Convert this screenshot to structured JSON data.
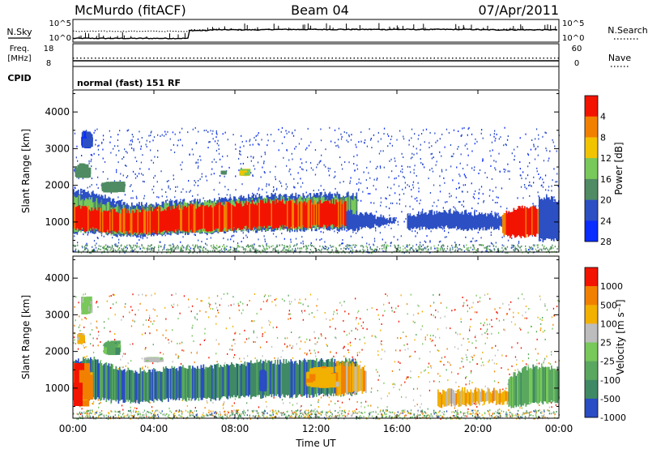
{
  "chart_data": {
    "type": "heatmap",
    "header": {
      "station": "McMurdo (fitACF)",
      "beam": "Beam 04",
      "date": "07/Apr/2011"
    },
    "summary_panels": {
      "nsky_label": "N.Sky",
      "nsky_ticks": [
        "10^5",
        "10^0"
      ],
      "nsearch_label": "N.Search",
      "nsearch_ticks": [
        "10^5",
        "10^0"
      ],
      "freq_label": "Freq.",
      "freq_unit": "[MHz]",
      "freq_ticks": [
        "18",
        "8"
      ],
      "nave_label": "Nave",
      "nave_ticks": [
        "60",
        "0"
      ],
      "cpid_label": "CPID",
      "mode_text": "normal (fast) 151 RF",
      "nsky_log_level": [
        0.6,
        0.6,
        0.6,
        0.6,
        0.6,
        0.6,
        2.8,
        3.0,
        3.0,
        3.0,
        3.1,
        3.1,
        3.1,
        3.1,
        3.1,
        3.1,
        3.1,
        3.1,
        3.1,
        3.1,
        3.1,
        3.0,
        3.0,
        3.0,
        3.0
      ],
      "nsearch_log_level": [
        2.6,
        2.6,
        2.6,
        2.6,
        2.6,
        2.6,
        3.0,
        3.1,
        3.1,
        3.1,
        3.1,
        3.1,
        3.1,
        3.1,
        3.1,
        3.1,
        3.1,
        3.1,
        3.1,
        3.1,
        3.1,
        3.1,
        3.1,
        3.1,
        3.1
      ],
      "freq_mhz": 10.5,
      "nave": 22
    },
    "x_axis": {
      "label": "Time UT",
      "ticks": [
        "00:00",
        "04:00",
        "08:00",
        "12:00",
        "16:00",
        "20:00",
        "00:00"
      ],
      "range_hours": [
        0,
        24
      ]
    },
    "power_panel": {
      "ylabel": "Slant Range [km]",
      "yticks": [
        1000,
        2000,
        3000,
        4000
      ],
      "ylim": [
        180,
        4600
      ],
      "colorbar_label": "Power [dB]",
      "colorbar_ticks": [
        "4",
        "8",
        "12",
        "16",
        "20",
        "24",
        "28"
      ],
      "colorbar_colors": [
        "#0a2cff",
        "#2c4fc4",
        "#4f8b63",
        "#78c85a",
        "#f2c400",
        "#f28000",
        "#f21400"
      ],
      "colorbar_range": [
        0,
        32
      ],
      "scatter_regions": [
        {
          "t0": 0.0,
          "t1": 24.0,
          "r0": 180,
          "r1": 3600,
          "value": 6,
          "density": 0.05
        },
        {
          "t0": 0.0,
          "t1": 24.0,
          "r0": 180,
          "r1": 400,
          "value": 12,
          "density": 0.4
        }
      ],
      "bands": [
        {
          "t0": 0.0,
          "t1": 14.0,
          "lo": [
            700,
            720,
            640,
            620,
            650,
            700,
            680,
            700,
            760,
            760,
            780,
            780,
            800,
            820,
            840
          ],
          "hi": [
            1850,
            1800,
            1560,
            1470,
            1500,
            1540,
            1570,
            1600,
            1650,
            1700,
            1720,
            1720,
            1740,
            1750,
            1760
          ],
          "value": 8
        },
        {
          "t0": 0.0,
          "t1": 14.0,
          "lo": [
            740,
            760,
            680,
            660,
            690,
            730,
            720,
            740,
            800,
            800,
            820,
            820,
            840,
            860,
            880
          ],
          "hi": [
            1700,
            1600,
            1430,
            1390,
            1420,
            1470,
            1500,
            1540,
            1570,
            1610,
            1640,
            1630,
            1650,
            1660,
            1660
          ],
          "value": 14
        },
        {
          "t0": 0.0,
          "t1": 13.5,
          "lo": [
            780,
            800,
            720,
            700,
            720,
            760,
            760,
            780,
            840,
            840,
            860,
            870,
            880,
            900
          ],
          "hi": [
            1450,
            1350,
            1300,
            1320,
            1350,
            1400,
            1440,
            1480,
            1500,
            1540,
            1560,
            1540,
            1560,
            1560
          ],
          "value": 28
        },
        {
          "t0": 13.5,
          "t1": 16.0,
          "lo": [
            760,
            800,
            850,
            900,
            950,
            1000
          ],
          "hi": [
            1300,
            1250,
            1200,
            1150,
            1100,
            1050
          ],
          "value": 6
        },
        {
          "t0": 16.5,
          "t1": 21.5,
          "lo": [
            800,
            850,
            850,
            800,
            820,
            850
          ],
          "hi": [
            1200,
            1250,
            1300,
            1250,
            1200,
            1150
          ],
          "value": 7
        },
        {
          "t0": 21.2,
          "t1": 23.3,
          "lo": [
            640,
            600,
            600,
            620,
            640
          ],
          "hi": [
            1250,
            1350,
            1450,
            1400,
            1350
          ],
          "value": 28
        },
        {
          "t0": 23.0,
          "t1": 24.0,
          "lo": [
            500,
            520,
            540
          ],
          "hi": [
            1700,
            1650,
            1600
          ],
          "value": 8
        }
      ],
      "patches": [
        {
          "t0": 0.1,
          "t1": 0.9,
          "r0": 2200,
          "r1": 2600,
          "value": 10
        },
        {
          "t0": 0.4,
          "t1": 1.0,
          "r0": 3000,
          "r1": 3500,
          "value": 5
        },
        {
          "t0": 1.4,
          "t1": 2.6,
          "r0": 1800,
          "r1": 2100,
          "value": 12
        },
        {
          "t0": 8.2,
          "t1": 8.8,
          "r0": 2250,
          "r1": 2450,
          "value": 18
        },
        {
          "t0": 7.3,
          "t1": 7.6,
          "r0": 2300,
          "r1": 2400,
          "value": 12
        }
      ]
    },
    "velocity_panel": {
      "ylabel": "Slant Range [km]",
      "yticks": [
        1000,
        2000,
        3000,
        4000
      ],
      "ylim": [
        180,
        4600
      ],
      "colorbar_label": "Velocity [m s⁻¹]",
      "colorbar_ticks": [
        "1000",
        "500",
        "100",
        "25",
        "-25",
        "-100",
        "-500",
        "-1000"
      ],
      "colorbar_colors": [
        "#2a4cc4",
        "#3f8a64",
        "#5aa860",
        "#78c85a",
        "#bdbdbd",
        "#f2b000",
        "#f28000",
        "#f21400"
      ],
      "colorbar_range": [
        0,
        8
      ],
      "scatter_regions": [
        {
          "t0": 0.0,
          "t1": 24.0,
          "r0": 180,
          "r1": 3600,
          "value": 5.5,
          "density": 0.04
        },
        {
          "t0": 0.0,
          "t1": 24.0,
          "r0": 180,
          "r1": 420,
          "value": 3.5,
          "density": 0.4
        }
      ],
      "bands": [
        {
          "t0": 0.0,
          "t1": 14.0,
          "lo": [
            700,
            720,
            640,
            620,
            650,
            700,
            680,
            700,
            760,
            760,
            780,
            780,
            800,
            820,
            840
          ],
          "hi": [
            1750,
            1800,
            1560,
            1470,
            1500,
            1540,
            1570,
            1600,
            1650,
            1700,
            1720,
            1720,
            1740,
            1750,
            1760
          ],
          "value": 1.5
        },
        {
          "t0": 13.0,
          "t1": 14.5,
          "lo": [
            800,
            850,
            900
          ],
          "hi": [
            1700,
            1650,
            1500
          ],
          "value": 5.5
        },
        {
          "t0": 18.0,
          "t1": 21.5,
          "lo": [
            500,
            550,
            600,
            600
          ],
          "hi": [
            900,
            950,
            950,
            900
          ],
          "value": 5.5
        },
        {
          "t0": 21.5,
          "t1": 24.0,
          "lo": [
            500,
            550,
            600,
            620
          ],
          "hi": [
            1300,
            1550,
            1600,
            1500
          ],
          "value": 2.5
        }
      ],
      "patches": [
        {
          "t0": 0.0,
          "t1": 1.0,
          "r0": 500,
          "r1": 1700,
          "value": 6.5
        },
        {
          "t0": 0.4,
          "t1": 1.0,
          "r0": 3000,
          "r1": 3500,
          "value": 4.0
        },
        {
          "t0": 0.2,
          "t1": 0.6,
          "r0": 2200,
          "r1": 2500,
          "value": 5.5
        },
        {
          "t0": 1.5,
          "t1": 2.4,
          "r0": 1900,
          "r1": 2300,
          "value": 2.5
        },
        {
          "t0": 11.5,
          "t1": 13.2,
          "r0": 1000,
          "r1": 1600,
          "value": 5.5
        },
        {
          "t0": 9.2,
          "t1": 9.6,
          "r0": 900,
          "r1": 1500,
          "value": 0.3
        },
        {
          "t0": 3.5,
          "t1": 4.5,
          "r0": 1700,
          "r1": 1850,
          "value": 4.0
        }
      ]
    }
  }
}
